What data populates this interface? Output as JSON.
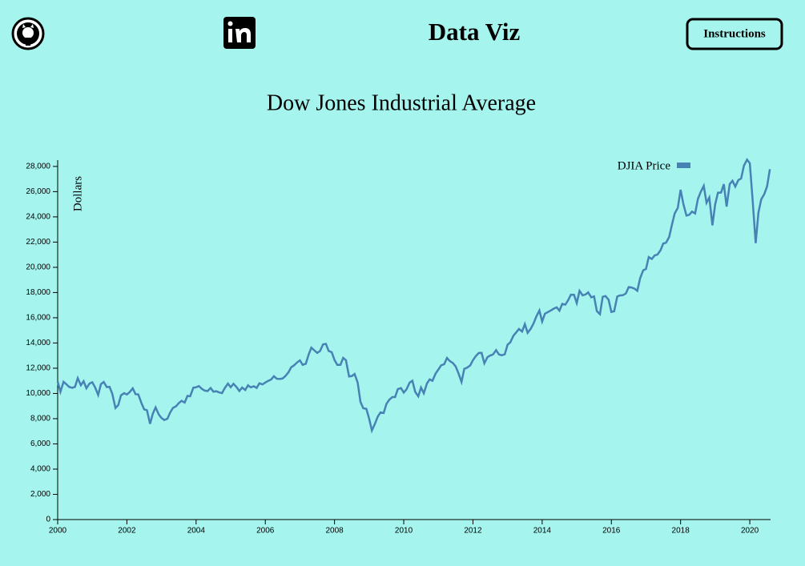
{
  "header": {
    "brand": "Data Viz",
    "button": "Instructions"
  },
  "chart_data": {
    "type": "line",
    "title": "Dow Jones Industrial Average",
    "y_label": "Dollars",
    "legend": "top-right",
    "x": [
      2000,
      2000.08,
      2000.17,
      2000.25,
      2000.33,
      2000.42,
      2000.5,
      2000.58,
      2000.67,
      2000.75,
      2000.83,
      2000.92,
      2001,
      2001.08,
      2001.17,
      2001.25,
      2001.33,
      2001.42,
      2001.5,
      2001.58,
      2001.67,
      2001.75,
      2001.83,
      2001.92,
      2002,
      2002.08,
      2002.17,
      2002.25,
      2002.33,
      2002.42,
      2002.5,
      2002.58,
      2002.67,
      2002.75,
      2002.83,
      2002.92,
      2003,
      2003.08,
      2003.17,
      2003.25,
      2003.33,
      2003.42,
      2003.5,
      2003.58,
      2003.67,
      2003.75,
      2003.83,
      2003.92,
      2004,
      2004.08,
      2004.17,
      2004.25,
      2004.33,
      2004.42,
      2004.5,
      2004.58,
      2004.67,
      2004.75,
      2004.83,
      2004.92,
      2005,
      2005.08,
      2005.17,
      2005.25,
      2005.33,
      2005.42,
      2005.5,
      2005.58,
      2005.67,
      2005.75,
      2005.83,
      2005.92,
      2006,
      2006.08,
      2006.17,
      2006.25,
      2006.33,
      2006.42,
      2006.5,
      2006.58,
      2006.67,
      2006.75,
      2006.83,
      2006.92,
      2007,
      2007.08,
      2007.17,
      2007.25,
      2007.33,
      2007.42,
      2007.5,
      2007.58,
      2007.67,
      2007.75,
      2007.83,
      2007.92,
      2008,
      2008.08,
      2008.17,
      2008.25,
      2008.33,
      2008.42,
      2008.5,
      2008.58,
      2008.67,
      2008.75,
      2008.83,
      2008.92,
      2009,
      2009.08,
      2009.17,
      2009.25,
      2009.33,
      2009.42,
      2009.5,
      2009.58,
      2009.67,
      2009.75,
      2009.83,
      2009.92,
      2010,
      2010.08,
      2010.17,
      2010.25,
      2010.33,
      2010.42,
      2010.5,
      2010.58,
      2010.67,
      2010.75,
      2010.83,
      2010.92,
      2011,
      2011.08,
      2011.17,
      2011.25,
      2011.33,
      2011.42,
      2011.5,
      2011.58,
      2011.67,
      2011.75,
      2011.83,
      2011.92,
      2012,
      2012.08,
      2012.17,
      2012.25,
      2012.33,
      2012.42,
      2012.5,
      2012.58,
      2012.67,
      2012.75,
      2012.83,
      2012.92,
      2013,
      2013.08,
      2013.17,
      2013.25,
      2013.33,
      2013.42,
      2013.5,
      2013.58,
      2013.67,
      2013.75,
      2013.83,
      2013.92,
      2014,
      2014.08,
      2014.17,
      2014.25,
      2014.33,
      2014.42,
      2014.5,
      2014.58,
      2014.67,
      2014.75,
      2014.83,
      2014.92,
      2015,
      2015.08,
      2015.17,
      2015.25,
      2015.33,
      2015.42,
      2015.5,
      2015.58,
      2015.67,
      2015.75,
      2015.83,
      2015.92,
      2016,
      2016.08,
      2016.17,
      2016.25,
      2016.33,
      2016.42,
      2016.5,
      2016.58,
      2016.67,
      2016.75,
      2016.83,
      2016.92,
      2017,
      2017.08,
      2017.17,
      2017.25,
      2017.33,
      2017.42,
      2017.5,
      2017.58,
      2017.67,
      2017.75,
      2017.83,
      2017.92,
      2018,
      2018.08,
      2018.17,
      2018.25,
      2018.33,
      2018.42,
      2018.5,
      2018.58,
      2018.67,
      2018.75,
      2018.83,
      2018.92,
      2019,
      2019.08,
      2019.17,
      2019.25,
      2019.33,
      2019.42,
      2019.5,
      2019.58,
      2019.67,
      2019.75,
      2019.83,
      2019.92,
      2020,
      2020.08,
      2020.17,
      2020.25,
      2020.33,
      2020.42,
      2020.5,
      2020.58
    ],
    "series": [
      {
        "name": "DJIA Price",
        "color": "#4682b4",
        "values": [
          10941,
          10128,
          10922,
          10734,
          10522,
          10448,
          10522,
          11215,
          10651,
          10971,
          10415,
          10787,
          10887,
          10495,
          9879,
          10735,
          10912,
          10502,
          10523,
          9950,
          8848,
          9075,
          9852,
          10022,
          9920,
          10106,
          10404,
          9946,
          9925,
          9243,
          8737,
          8664,
          7592,
          8397,
          8896,
          8342,
          8054,
          7891,
          7992,
          8480,
          8850,
          8985,
          9234,
          9416,
          9275,
          9801,
          9782,
          10454,
          10488,
          10584,
          10358,
          10226,
          10188,
          10435,
          10140,
          10174,
          10080,
          10027,
          10428,
          10783,
          10490,
          10766,
          10504,
          10193,
          10467,
          10275,
          10641,
          10482,
          10569,
          10440,
          10806,
          10718,
          10865,
          10993,
          11109,
          11367,
          11168,
          11150,
          11186,
          11381,
          11679,
          12081,
          12222,
          12463,
          12622,
          12269,
          12354,
          13063,
          13628,
          13409,
          13212,
          13358,
          13896,
          13930,
          13372,
          13265,
          12650,
          12266,
          12263,
          12820,
          12638,
          11350,
          11378,
          11544,
          10851,
          9325,
          8829,
          8776,
          8001,
          7063,
          7609,
          8168,
          8500,
          8447,
          9172,
          9496,
          9712,
          9713,
          10345,
          10428,
          10067,
          10325,
          10857,
          11009,
          10137,
          9774,
          10466,
          10015,
          10788,
          11118,
          11006,
          11578,
          11892,
          12226,
          12320,
          12811,
          12570,
          12414,
          12143,
          11614,
          10913,
          11955,
          12046,
          12218,
          12633,
          12952,
          13212,
          13214,
          12393,
          12880,
          13009,
          13091,
          13437,
          13096,
          13026,
          13104,
          13861,
          14054,
          14579,
          14840,
          15116,
          14910,
          15500,
          14810,
          15130,
          15546,
          16086,
          16577,
          15699,
          16322,
          16458,
          16581,
          16717,
          16827,
          16563,
          17098,
          17043,
          17391,
          17828,
          17823,
          17165,
          18133,
          17776,
          17841,
          18011,
          17620,
          17690,
          16528,
          16285,
          17664,
          17720,
          17425,
          16466,
          16517,
          17685,
          17774,
          17787,
          17930,
          18432,
          18401,
          18308,
          18142,
          19124,
          19763,
          19864,
          20812,
          20663,
          20941,
          21009,
          21350,
          21891,
          21948,
          22405,
          23377,
          24272,
          24719,
          26149,
          25029,
          24103,
          24163,
          24416,
          24271,
          25415,
          25965,
          26458,
          25116,
          25538,
          23327,
          24999,
          25916,
          25929,
          26593,
          24815,
          26600,
          26864,
          26403,
          26917,
          27046,
          28051,
          28538,
          28256,
          25409,
          21917,
          24346,
          25383,
          25813,
          26428,
          27781
        ]
      }
    ],
    "xlim": [
      2000,
      2020.6
    ],
    "xticks": [
      2000,
      2002,
      2004,
      2006,
      2008,
      2010,
      2012,
      2014,
      2016,
      2018,
      2020
    ],
    "ylim": [
      0,
      28500
    ],
    "yticks": [
      0,
      {
        "value": 2000,
        "label": "2,000"
      },
      {
        "value": 4000,
        "label": "4,000"
      },
      {
        "value": 6000,
        "label": "6,000"
      },
      {
        "value": 8000,
        "label": "8,000"
      },
      {
        "value": 10000,
        "label": "10,000"
      },
      {
        "value": 12000,
        "label": "12,000"
      },
      {
        "value": 14000,
        "label": "14,000"
      },
      {
        "value": 16000,
        "label": "16,000"
      },
      {
        "value": 18000,
        "label": "18,000"
      },
      {
        "value": 20000,
        "label": "20,000"
      },
      {
        "value": 22000,
        "label": "22,000"
      },
      {
        "value": 24000,
        "label": "24,000"
      },
      {
        "value": 26000,
        "label": "26,000"
      },
      {
        "value": 28000,
        "label": "28,000"
      }
    ]
  }
}
